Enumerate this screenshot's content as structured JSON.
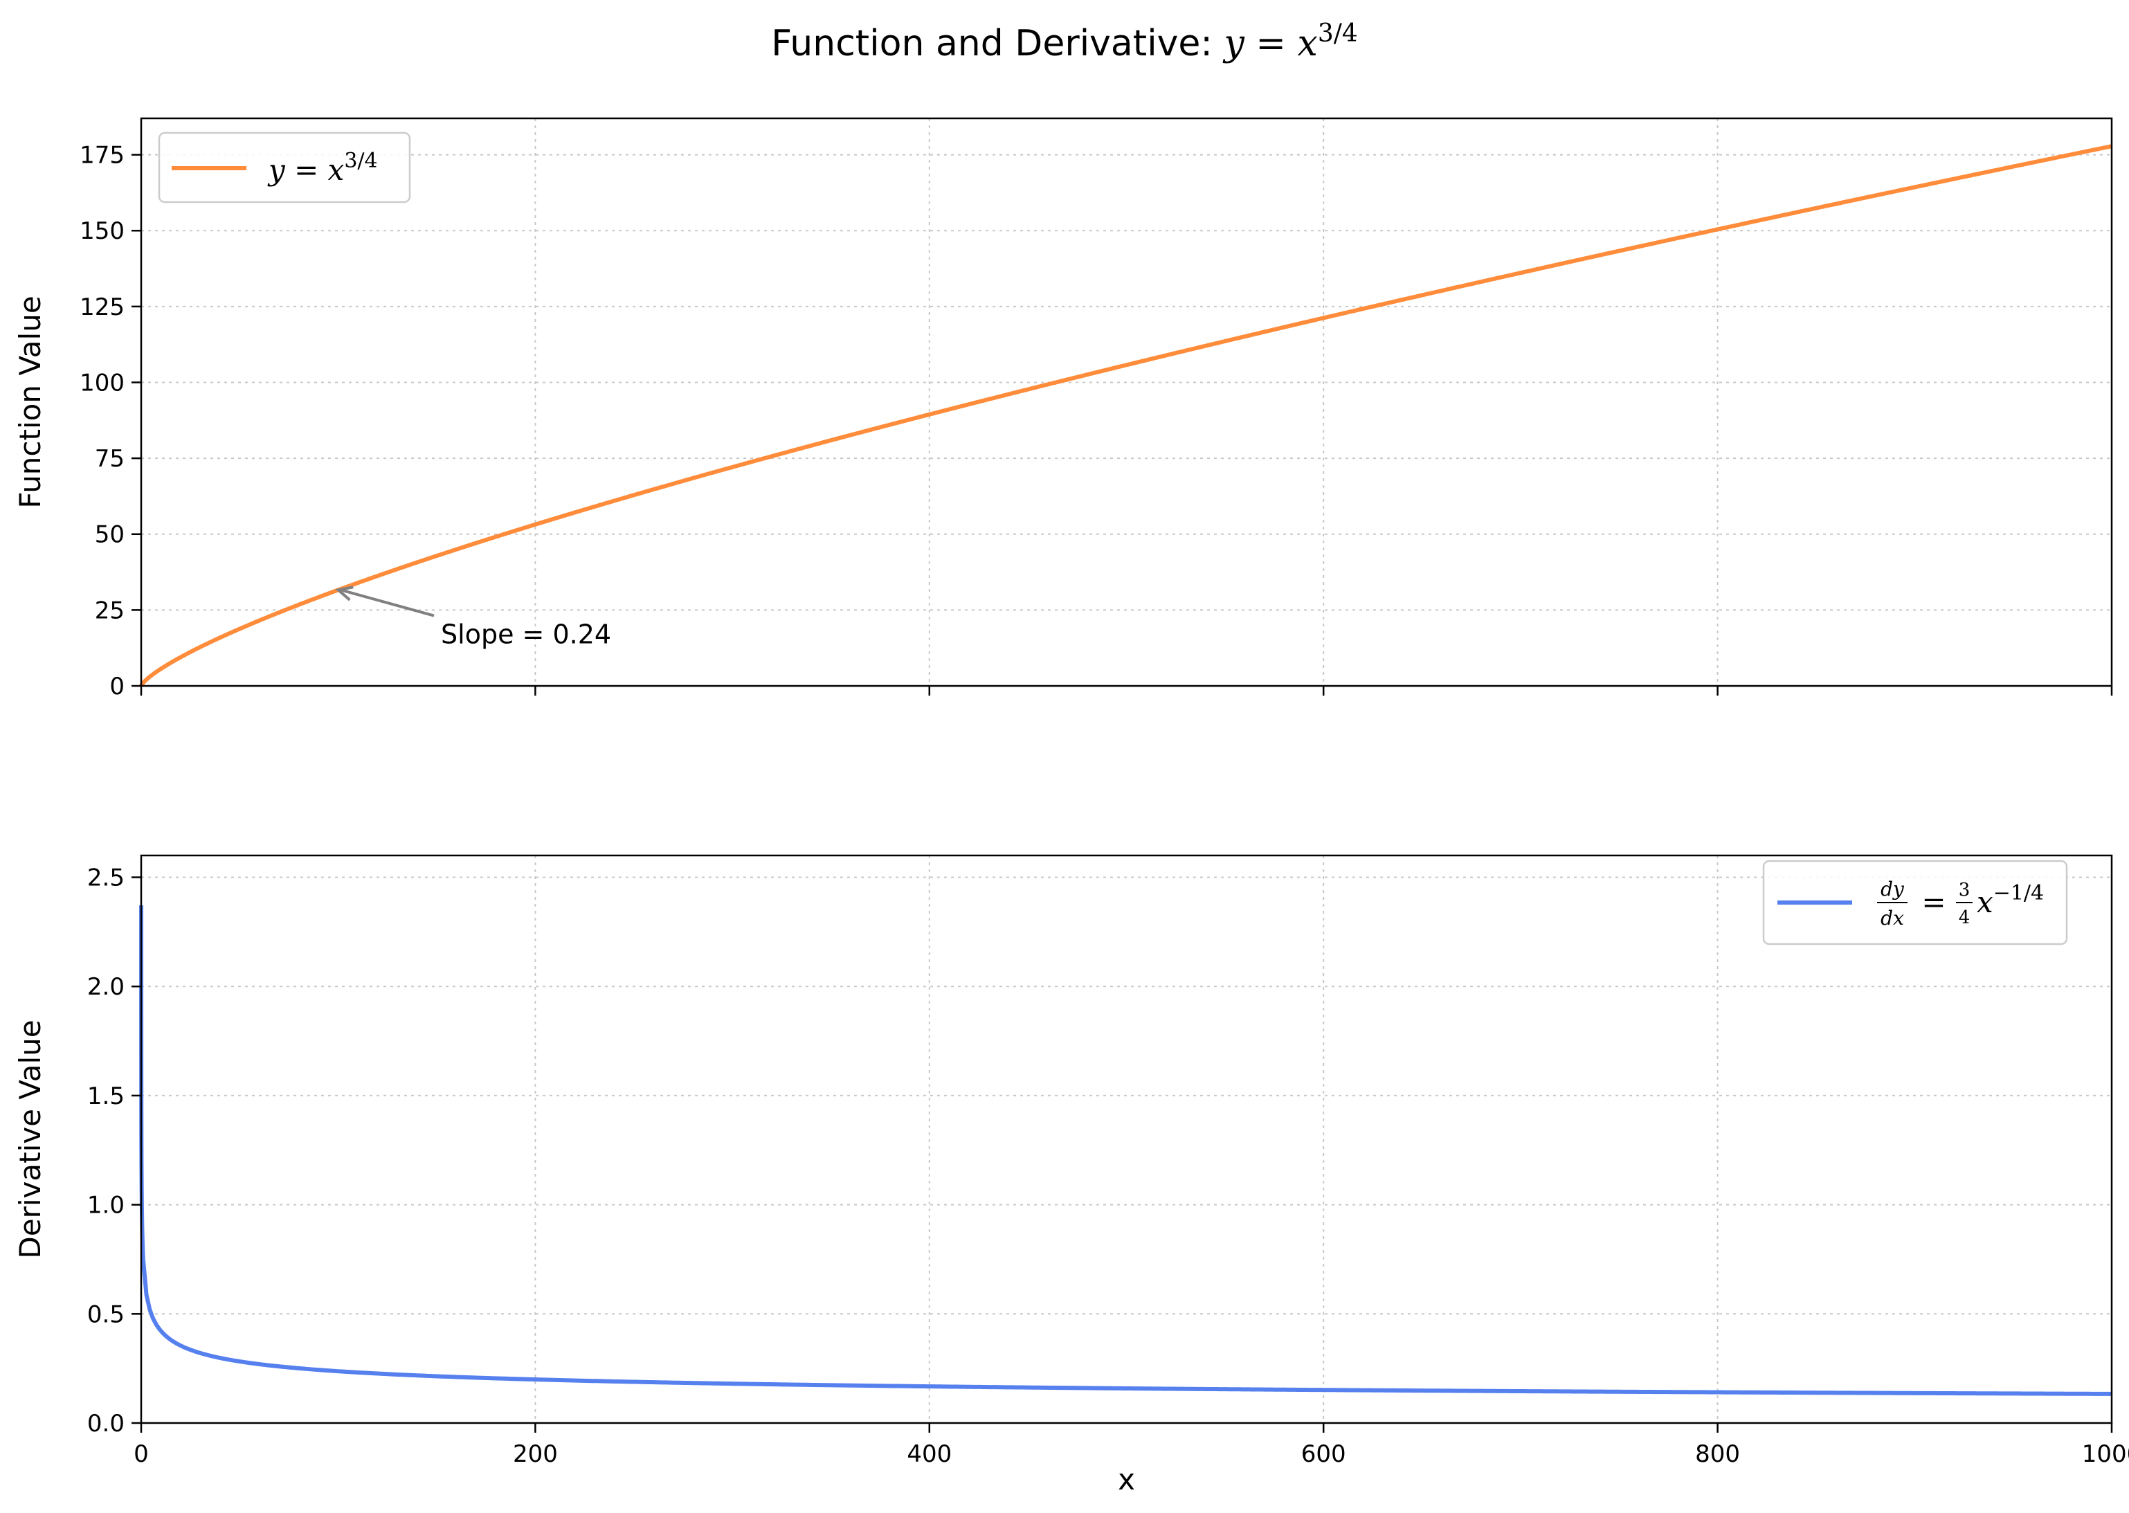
{
  "figure": {
    "title_text": "Function and Derivative: ",
    "title_math": {
      "base": "y",
      "eq": " = ",
      "var": "x",
      "exp": "3/4"
    }
  },
  "chart_data": [
    {
      "type": "line",
      "ylabel": "Function Value",
      "xlabel": "",
      "xlim": [
        0,
        1000
      ],
      "ylim": [
        0,
        187
      ],
      "grid": true,
      "legend_placement": "upper-left",
      "x_ticks": [
        0,
        200,
        400,
        600,
        800,
        1000
      ],
      "y_ticks": [
        0,
        25,
        50,
        75,
        100,
        125,
        150,
        175
      ],
      "y_tick_labels": [
        "0",
        "25",
        "50",
        "75",
        "100",
        "125",
        "150",
        "175"
      ],
      "series": [
        {
          "name_math": {
            "base": "y",
            "eq": " = ",
            "var": "x",
            "exp": "3/4"
          },
          "color": "#ff8c3a",
          "function": "x^(3/4)",
          "x": [
            0,
            1,
            10,
            50,
            100,
            200,
            300,
            400,
            500,
            600,
            700,
            800,
            900,
            1000
          ],
          "y": [
            0,
            1,
            5.62,
            18.8,
            31.6,
            53.2,
            72.1,
            89.4,
            105.7,
            121.2,
            135.9,
            150.4,
            164.3,
            177.8
          ]
        }
      ],
      "annotation": {
        "text": "Slope = 0.24",
        "point": [
          100,
          31.6
        ],
        "text_at": [
          150,
          14
        ]
      }
    },
    {
      "type": "line",
      "ylabel": "Derivative Value",
      "xlabel": "x",
      "xlim": [
        0,
        1000
      ],
      "ylim": [
        0,
        2.6
      ],
      "grid": true,
      "legend_placement": "upper-right",
      "x_ticks": [
        0,
        200,
        400,
        600,
        800,
        1000
      ],
      "x_tick_labels": [
        "0",
        "200",
        "400",
        "600",
        "800",
        "1000"
      ],
      "y_ticks": [
        0,
        0.5,
        1.0,
        1.5,
        2.0,
        2.5
      ],
      "y_tick_labels": [
        "0.0",
        "0.5",
        "1.0",
        "1.5",
        "2.0",
        "2.5"
      ],
      "series": [
        {
          "name_math": {
            "num": "dy",
            "den": "dx",
            "eq": " = ",
            "cnum": "3",
            "cden": "4",
            "var": "x",
            "exp": "−1/4"
          },
          "color": "#5580ee",
          "function": "0.75*x^(-1/4)",
          "x": [
            0.01,
            0.1,
            1,
            5,
            10,
            50,
            100,
            200,
            400,
            600,
            800,
            1000
          ],
          "y": [
            2.37,
            1.33,
            0.75,
            0.5,
            0.42,
            0.28,
            0.24,
            0.2,
            0.17,
            0.15,
            0.14,
            0.13
          ]
        }
      ]
    }
  ]
}
